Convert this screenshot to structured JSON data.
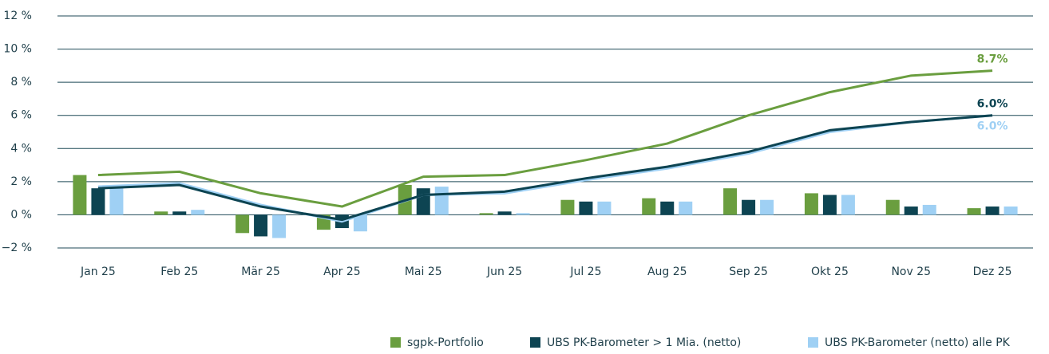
{
  "chart_data": {
    "type": "combo",
    "categories": [
      "Jan 25",
      "Feb 25",
      "Mär 25",
      "Apr 25",
      "Mai 25",
      "Jun 25",
      "Jul 25",
      "Aug 25",
      "Sep 25",
      "Okt 25",
      "Nov 25",
      "Dez 25"
    ],
    "ylim": [
      -2,
      12
    ],
    "yticks": [
      {
        "value": -2,
        "label": "−2 %"
      },
      {
        "value": 0,
        "label": "0 %"
      },
      {
        "value": 2,
        "label": "2 %"
      },
      {
        "value": 4,
        "label": "4 %"
      },
      {
        "value": 6,
        "label": "6 %"
      },
      {
        "value": 8,
        "label": "8 %"
      },
      {
        "value": 10,
        "label": "10 %"
      },
      {
        "value": 12,
        "label": "12 %"
      }
    ],
    "grid": true,
    "legend": "bottom",
    "series": [
      {
        "name": "sgpk-Portfolio",
        "color": "#6a9e3f",
        "values": [
          2.4,
          0.2,
          -1.1,
          -0.9,
          1.8,
          0.1,
          0.9,
          1.0,
          1.6,
          1.3,
          0.9,
          0.4
        ],
        "cumulative": [
          2.4,
          2.6,
          1.3,
          0.5,
          2.3,
          2.4,
          3.3,
          4.3,
          6.0,
          7.4,
          8.4,
          8.7
        ],
        "value_labels": [
          null,
          null,
          null,
          null,
          null,
          null,
          null,
          null,
          null,
          null,
          null,
          "8.7%"
        ]
      },
      {
        "name": "UBS PK-Barometer > 1 Mia. (netto)",
        "color": "#0d4452",
        "values": [
          1.6,
          0.2,
          -1.3,
          -0.8,
          1.6,
          0.2,
          0.8,
          0.8,
          0.9,
          1.2,
          0.5,
          0.5
        ],
        "cumulative": [
          1.6,
          1.8,
          0.5,
          -0.3,
          1.2,
          1.4,
          2.2,
          2.9,
          3.8,
          5.1,
          5.6,
          6.0
        ],
        "value_labels": [
          null,
          null,
          null,
          null,
          null,
          null,
          null,
          null,
          null,
          null,
          null,
          "6.0%"
        ]
      },
      {
        "name": "UBS PK-Barometer (netto) alle PK",
        "color": "#9fd0f4",
        "values": [
          1.7,
          0.3,
          -1.4,
          -1.0,
          1.7,
          0.1,
          0.8,
          0.8,
          0.9,
          1.2,
          0.6,
          0.5
        ],
        "cumulative": [
          1.7,
          1.9,
          0.6,
          -0.4,
          1.2,
          1.3,
          2.1,
          2.8,
          3.7,
          5.0,
          5.6,
          6.0
        ],
        "value_labels": [
          null,
          null,
          null,
          null,
          null,
          null,
          null,
          null,
          null,
          null,
          null,
          "6.0%"
        ]
      }
    ]
  }
}
